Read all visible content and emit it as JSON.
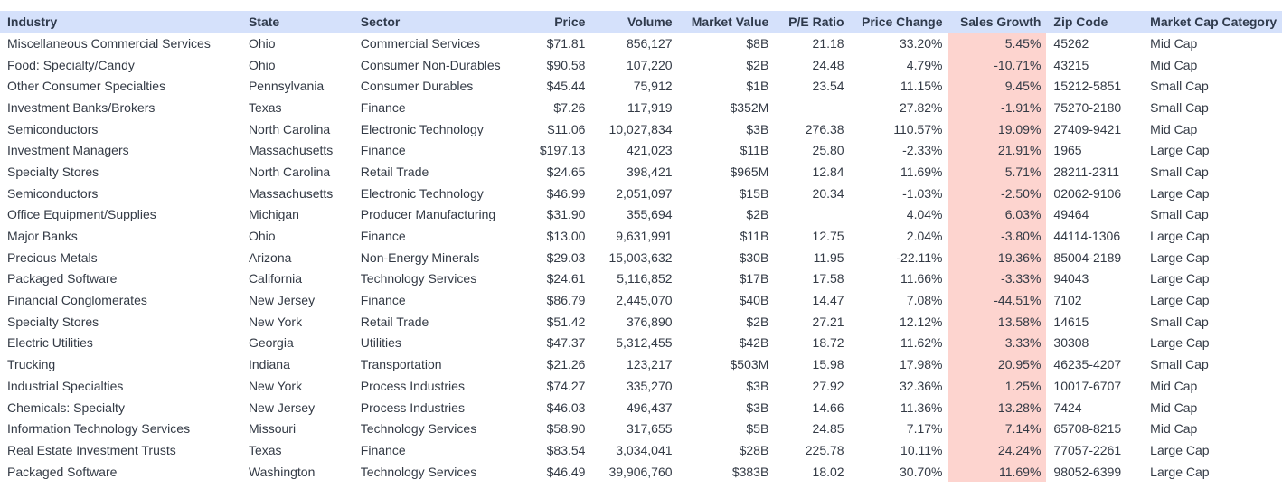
{
  "columns": [
    {
      "label": "Industry"
    },
    {
      "label": "State"
    },
    {
      "label": "Sector"
    },
    {
      "label": "Price"
    },
    {
      "label": "Volume"
    },
    {
      "label": "Market Value"
    },
    {
      "label": "P/E Ratio"
    },
    {
      "label": "Price Change"
    },
    {
      "label": "Sales Growth"
    },
    {
      "label": "Zip Code"
    },
    {
      "label": "Market Cap Category"
    }
  ],
  "highlight_color": "#fdd4cf",
  "header_color": "#d5e1fb",
  "rows": [
    [
      "Miscellaneous Commercial Services",
      "Ohio",
      "Commercial Services",
      "$71.81",
      "856,127",
      "$8B",
      "21.18",
      "33.20%",
      "5.45%",
      "45262",
      "Mid Cap"
    ],
    [
      "Food: Specialty/Candy",
      "Ohio",
      "Consumer Non-Durables",
      "$90.58",
      "107,220",
      "$2B",
      "24.48",
      "4.79%",
      "-10.71%",
      "43215",
      "Mid Cap"
    ],
    [
      "Other Consumer Specialties",
      "Pennsylvania",
      "Consumer Durables",
      "$45.44",
      "75,912",
      "$1B",
      "23.54",
      "11.15%",
      "9.45%",
      "15212-5851",
      "Small Cap"
    ],
    [
      "Investment Banks/Brokers",
      "Texas",
      "Finance",
      "$7.26",
      "117,919",
      "$352M",
      "",
      "27.82%",
      "-1.91%",
      "75270-2180",
      "Small Cap"
    ],
    [
      "Semiconductors",
      "North Carolina",
      "Electronic Technology",
      "$11.06",
      "10,027,834",
      "$3B",
      "276.38",
      "110.57%",
      "19.09%",
      "27409-9421",
      "Mid Cap"
    ],
    [
      "Investment Managers",
      "Massachusetts",
      "Finance",
      "$197.13",
      "421,023",
      "$11B",
      "25.80",
      "-2.33%",
      "21.91%",
      "1965",
      "Large Cap"
    ],
    [
      "Specialty Stores",
      "North Carolina",
      "Retail Trade",
      "$24.65",
      "398,421",
      "$965M",
      "12.84",
      "11.69%",
      "5.71%",
      "28211-2311",
      "Small Cap"
    ],
    [
      "Semiconductors",
      "Massachusetts",
      "Electronic Technology",
      "$46.99",
      "2,051,097",
      "$15B",
      "20.34",
      "-1.03%",
      "-2.50%",
      "02062-9106",
      "Large Cap"
    ],
    [
      "Office Equipment/Supplies",
      "Michigan",
      "Producer Manufacturing",
      "$31.90",
      "355,694",
      "$2B",
      "",
      "4.04%",
      "6.03%",
      "49464",
      "Small Cap"
    ],
    [
      "Major Banks",
      "Ohio",
      "Finance",
      "$13.00",
      "9,631,991",
      "$11B",
      "12.75",
      "2.04%",
      "-3.80%",
      "44114-1306",
      "Large Cap"
    ],
    [
      "Precious Metals",
      "Arizona",
      "Non-Energy Minerals",
      "$29.03",
      "15,003,632",
      "$30B",
      "11.95",
      "-22.11%",
      "19.36%",
      "85004-2189",
      "Large Cap"
    ],
    [
      "Packaged Software",
      "California",
      "Technology Services",
      "$24.61",
      "5,116,852",
      "$17B",
      "17.58",
      "11.66%",
      "-3.33%",
      "94043",
      "Large Cap"
    ],
    [
      "Financial Conglomerates",
      "New Jersey",
      "Finance",
      "$86.79",
      "2,445,070",
      "$40B",
      "14.47",
      "7.08%",
      "-44.51%",
      "7102",
      "Large Cap"
    ],
    [
      "Specialty Stores",
      "New York",
      "Retail Trade",
      "$51.42",
      "376,890",
      "$2B",
      "27.21",
      "12.12%",
      "13.58%",
      "14615",
      "Small Cap"
    ],
    [
      "Electric Utilities",
      "Georgia",
      "Utilities",
      "$47.37",
      "5,312,455",
      "$42B",
      "18.72",
      "11.62%",
      "3.33%",
      "30308",
      "Large Cap"
    ],
    [
      "Trucking",
      "Indiana",
      "Transportation",
      "$21.26",
      "123,217",
      "$503M",
      "15.98",
      "17.98%",
      "20.95%",
      "46235-4207",
      "Small Cap"
    ],
    [
      "Industrial Specialties",
      "New York",
      "Process Industries",
      "$74.27",
      "335,270",
      "$3B",
      "27.92",
      "32.36%",
      "1.25%",
      "10017-6707",
      "Mid Cap"
    ],
    [
      "Chemicals: Specialty",
      "New Jersey",
      "Process Industries",
      "$46.03",
      "496,437",
      "$3B",
      "14.66",
      "11.36%",
      "13.28%",
      "7424",
      "Mid Cap"
    ],
    [
      "Information Technology Services",
      "Missouri",
      "Technology Services",
      "$58.90",
      "317,655",
      "$5B",
      "24.85",
      "7.17%",
      "7.14%",
      "65708-8215",
      "Mid Cap"
    ],
    [
      "Real Estate Investment Trusts",
      "Texas",
      "Finance",
      "$83.54",
      "3,034,041",
      "$28B",
      "225.78",
      "10.11%",
      "24.24%",
      "77057-2261",
      "Large Cap"
    ],
    [
      "Packaged Software",
      "Washington",
      "Technology Services",
      "$46.49",
      "39,906,760",
      "$383B",
      "18.02",
      "30.70%",
      "11.69%",
      "98052-6399",
      "Large Cap"
    ]
  ]
}
